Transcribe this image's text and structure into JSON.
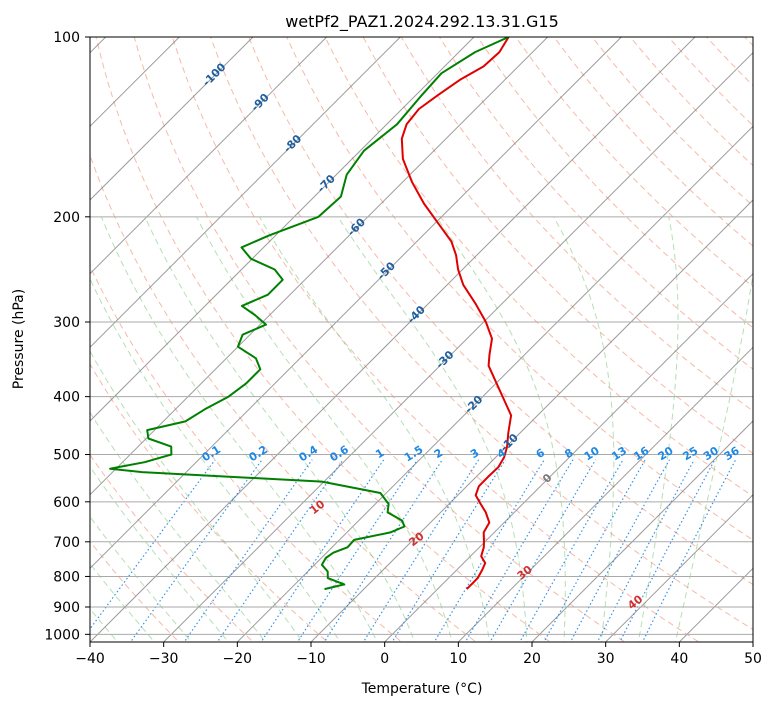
{
  "chart_data": {
    "type": "line",
    "title": "wetPf2_PAZ1.2024.292.13.31.G15",
    "xlabel": "Temperature (°C)",
    "ylabel": "Pressure (hPa)",
    "xlim": [
      -40,
      50
    ],
    "ylim": [
      1030,
      100
    ],
    "y_scale": "log",
    "grid": true,
    "x_ticks": [
      "−40",
      "−30",
      "−20",
      "−10",
      "0",
      "10",
      "20",
      "30",
      "40",
      "50"
    ],
    "x_tick_values": [
      -40,
      -30,
      -20,
      -10,
      0,
      10,
      20,
      30,
      40,
      50
    ],
    "y_ticks": [
      "100",
      "200",
      "300",
      "400",
      "500",
      "600",
      "700",
      "800",
      "900",
      "1000"
    ],
    "y_tick_values": [
      100,
      200,
      300,
      400,
      500,
      600,
      700,
      800,
      900,
      1000
    ],
    "skew": 1.0,
    "colors": {
      "temperature": "#e00000",
      "dewpoint": "#008000",
      "isotherm": "#7a7a7a",
      "dry_adiabat": "#f08060",
      "moist_adiabat": "#5cb85c",
      "mixing_ratio": "#1e88e5",
      "isotherm_label": "#1f5f9f",
      "dry_adiabat_label": "#d22f2f",
      "grid": "#aaaaaa"
    },
    "isotherm_labels": [
      "-100",
      "-90",
      "-80",
      "-70",
      "-60",
      "-50",
      "-40",
      "-30",
      "-20",
      "-10",
      "0"
    ],
    "isotherm_label_values": [
      -100,
      -90,
      -80,
      -70,
      -60,
      -50,
      -40,
      -30,
      -20,
      -10,
      0
    ],
    "dry_adiabat_labels": [
      "10",
      "20",
      "30",
      "40"
    ],
    "dry_adiabat_label_values": [
      10,
      20,
      30,
      40
    ],
    "mixing_ratio_labels": [
      "0.1",
      "0.2",
      "0.4",
      "0.6",
      "1",
      "1.5",
      "2",
      "3",
      "4",
      "6",
      "8",
      "10",
      "13",
      "16",
      "20",
      "25",
      "30",
      "36"
    ],
    "mixing_ratio_label_values": [
      0.1,
      0.2,
      0.4,
      0.6,
      1,
      1.5,
      2,
      3,
      4,
      6,
      8,
      10,
      13,
      16,
      20,
      25,
      30,
      36
    ],
    "series": [
      {
        "key": "temperature",
        "points": [
          [
            840,
            3.95
          ],
          [
            825,
            3.96
          ],
          [
            805,
            3.95
          ],
          [
            780,
            3.45
          ],
          [
            760,
            2.94
          ],
          [
            740,
            1.46
          ],
          [
            715,
            0.6
          ],
          [
            700,
            -0.12
          ],
          [
            675,
            -1.44
          ],
          [
            650,
            -2.01
          ],
          [
            625,
            -3.86
          ],
          [
            605,
            -5.7
          ],
          [
            585,
            -7.56
          ],
          [
            565,
            -8.36
          ],
          [
            545,
            -8.39
          ],
          [
            525,
            -8.3
          ],
          [
            505,
            -8.87
          ],
          [
            485,
            -9.9
          ],
          [
            460,
            -11.6
          ],
          [
            430,
            -13.6
          ],
          [
            400,
            -17.3
          ],
          [
            375,
            -20.6
          ],
          [
            355,
            -23.4
          ],
          [
            340,
            -24.8
          ],
          [
            320,
            -26.6
          ],
          [
            300,
            -29.7
          ],
          [
            280,
            -33.5
          ],
          [
            260,
            -37.8
          ],
          [
            245,
            -40.6
          ],
          [
            232,
            -42.8
          ],
          [
            220,
            -45.3
          ],
          [
            205,
            -49.6
          ],
          [
            190,
            -54.2
          ],
          [
            175,
            -58.7
          ],
          [
            160,
            -63.1
          ],
          [
            148,
            -66.0
          ],
          [
            140,
            -67.3
          ],
          [
            132,
            -67.7
          ],
          [
            125,
            -67.0
          ],
          [
            118,
            -66.1
          ],
          [
            112,
            -64.7
          ],
          [
            106,
            -64.5
          ],
          [
            100,
            -65.3
          ]
        ]
      },
      {
        "key": "dewpoint",
        "points": [
          [
            840,
            -15.35
          ],
          [
            825,
            -13.3
          ],
          [
            805,
            -16.4
          ],
          [
            785,
            -17.3
          ],
          [
            765,
            -19.0
          ],
          [
            745,
            -19.4
          ],
          [
            730,
            -19.1
          ],
          [
            715,
            -17.9
          ],
          [
            695,
            -18.0
          ],
          [
            675,
            -14.1
          ],
          [
            660,
            -13.0
          ],
          [
            645,
            -14.1
          ],
          [
            625,
            -17.2
          ],
          [
            605,
            -18.2
          ],
          [
            580,
            -20.8
          ],
          [
            555,
            -30.3
          ],
          [
            535,
            -56.0
          ],
          [
            528,
            -60.8
          ],
          [
            515,
            -57.0
          ],
          [
            500,
            -54.4
          ],
          [
            485,
            -55.5
          ],
          [
            470,
            -59.7
          ],
          [
            455,
            -61.0
          ],
          [
            440,
            -57.0
          ],
          [
            420,
            -56.0
          ],
          [
            400,
            -54.5
          ],
          [
            380,
            -53.9
          ],
          [
            360,
            -53.9
          ],
          [
            345,
            -56.0
          ],
          [
            330,
            -60.0
          ],
          [
            315,
            -61.0
          ],
          [
            303,
            -59.2
          ],
          [
            292,
            -62.0
          ],
          [
            282,
            -65.0
          ],
          [
            270,
            -63.0
          ],
          [
            255,
            -63.0
          ],
          [
            245,
            -65.5
          ],
          [
            235,
            -70.2
          ],
          [
            225,
            -73.0
          ],
          [
            215,
            -70.9
          ],
          [
            200,
            -66.7
          ],
          [
            185,
            -66.4
          ],
          [
            170,
            -68.6
          ],
          [
            155,
            -69.5
          ],
          [
            140,
            -68.6
          ],
          [
            125,
            -69.2
          ],
          [
            115,
            -69.5
          ],
          [
            106,
            -67.8
          ],
          [
            100,
            -65.3
          ]
        ]
      }
    ]
  }
}
